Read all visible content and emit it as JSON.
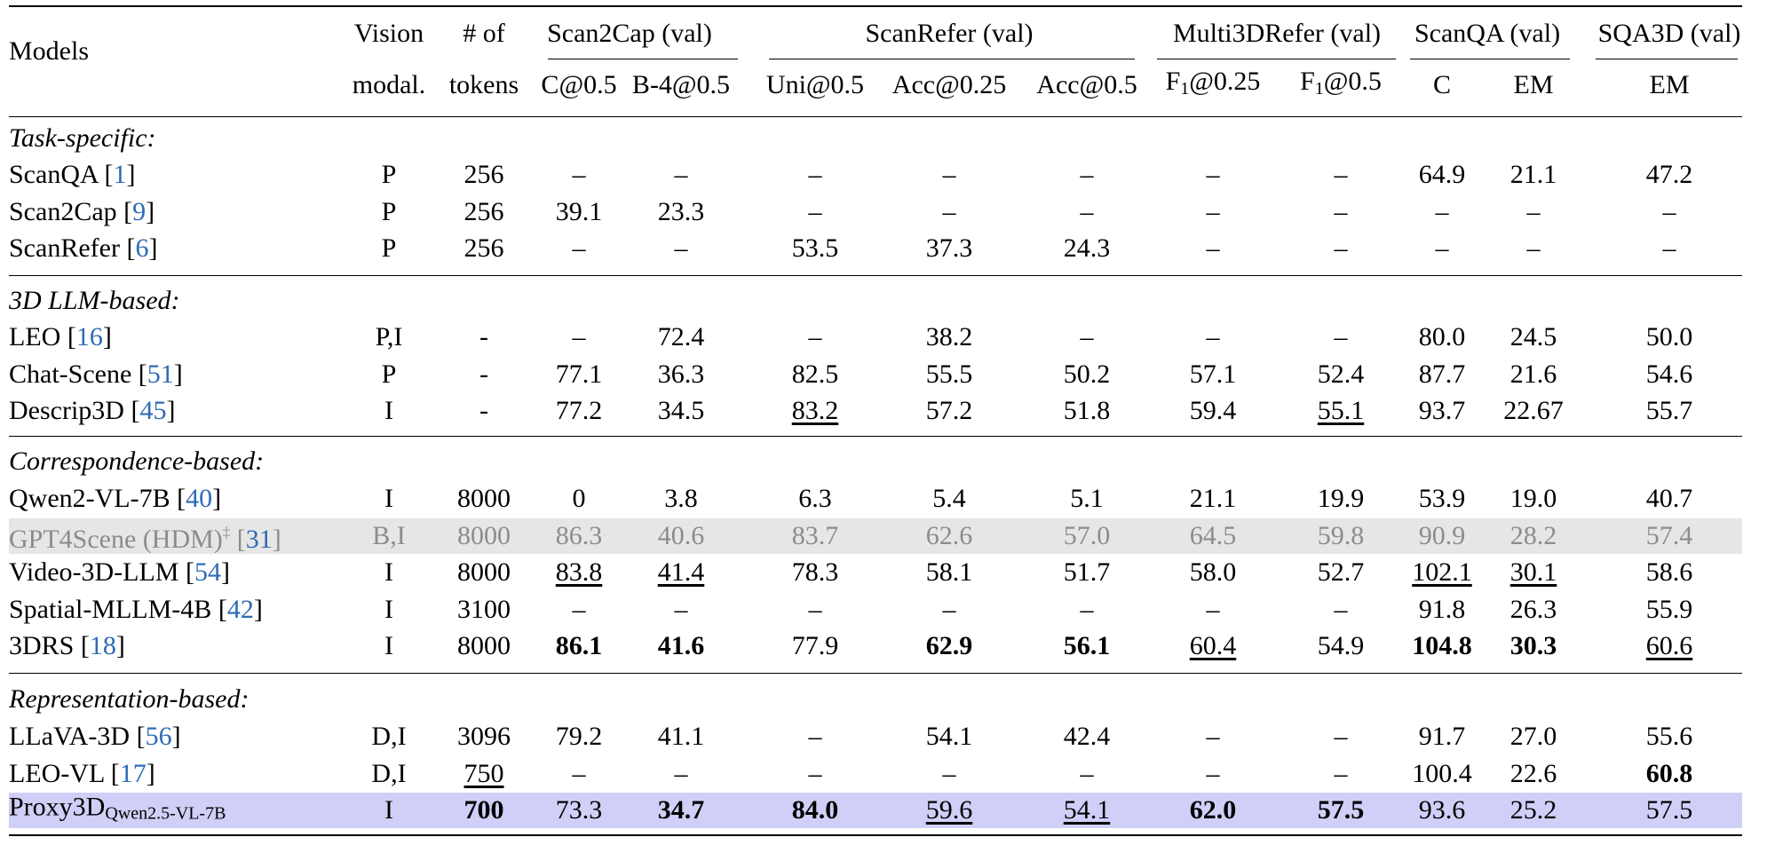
{
  "header": {
    "models": "Models",
    "vision_1": "Vision",
    "vision_2": "modal.",
    "tokens_1": "# of",
    "tokens_2": "tokens",
    "groups": [
      "Scan2Cap (val)",
      "ScanRefer (val)",
      "Multi3DRefer (val)",
      "ScanQA (val)",
      "SQA3D (val)"
    ],
    "metrics": [
      "C@0.5",
      "B-4@0.5",
      "Uni@0.5",
      "Acc@0.25",
      "Acc@0.5",
      "F",
      "F",
      "C",
      "EM",
      "EM"
    ],
    "metric_sub": "1",
    "metric_suffix_25": "@0.25",
    "metric_suffix_5": "@0.5"
  },
  "sections": [
    {
      "title": "Task-specific:",
      "rows": [
        {
          "name": "ScanQA",
          "ref": "1",
          "modal": "P",
          "tokens": "256",
          "vals": [
            "–",
            "–",
            "–",
            "–",
            "–",
            "–",
            "–",
            "64.9",
            "21.1",
            "47.2"
          ]
        },
        {
          "name": "Scan2Cap",
          "ref": "9",
          "modal": "P",
          "tokens": "256",
          "vals": [
            "39.1",
            "23.3",
            "–",
            "–",
            "–",
            "–",
            "–",
            "–",
            "–",
            "–"
          ]
        },
        {
          "name": "ScanRefer",
          "ref": "6",
          "modal": "P",
          "tokens": "256",
          "vals": [
            "–",
            "–",
            "53.5",
            "37.3",
            "24.3",
            "–",
            "–",
            "–",
            "–",
            "–"
          ]
        }
      ]
    },
    {
      "title": "3D LLM-based:",
      "rows": [
        {
          "name": "LEO",
          "ref": "16",
          "modal": "P,I",
          "tokens": "-",
          "vals": [
            "–",
            "72.4",
            "–",
            "38.2",
            "–",
            "–",
            "–",
            "80.0",
            "24.5",
            "50.0"
          ]
        },
        {
          "name": "Chat-Scene",
          "ref": "51",
          "modal": "P",
          "tokens": "-",
          "vals": [
            "77.1",
            "36.3",
            "82.5",
            "55.5",
            "50.2",
            "57.1",
            "52.4",
            "87.7",
            "21.6",
            "54.6"
          ]
        },
        {
          "name": "Descrip3D",
          "ref": "45",
          "modal": "I",
          "tokens": "-",
          "vals": [
            "77.2",
            "34.5",
            "83.2",
            "57.2",
            "51.8",
            "59.4",
            "55.1",
            "93.7",
            "22.67",
            "55.7"
          ]
        }
      ]
    },
    {
      "title": "Correspondence-based:",
      "rows": [
        {
          "name": "Qwen2-VL-7B",
          "ref": "40",
          "modal": "I",
          "tokens": "8000",
          "vals": [
            "0",
            "3.8",
            "6.3",
            "5.4",
            "5.1",
            "21.1",
            "19.9",
            "53.9",
            "19.0",
            "40.7"
          ]
        },
        {
          "name": "GPT4Scene (HDM)",
          "sup": "‡",
          "ref": "31",
          "modal": "B,I",
          "tokens": "8000",
          "vals": [
            "86.3",
            "40.6",
            "83.7",
            "62.6",
            "57.0",
            "64.5",
            "59.8",
            "90.9",
            "28.2",
            "57.4"
          ]
        },
        {
          "name": "Video-3D-LLM",
          "ref": "54",
          "modal": "I",
          "tokens": "8000",
          "vals": [
            "83.8",
            "41.4",
            "78.3",
            "58.1",
            "51.7",
            "58.0",
            "52.7",
            "102.1",
            "30.1",
            "58.6"
          ]
        },
        {
          "name": "Spatial-MLLM-4B",
          "ref": "42",
          "modal": "I",
          "tokens": "3100",
          "vals": [
            "–",
            "–",
            "–",
            "–",
            "–",
            "–",
            "–",
            "91.8",
            "26.3",
            "55.9"
          ]
        },
        {
          "name": "3DRS",
          "ref": "18",
          "modal": "I",
          "tokens": "8000",
          "vals": [
            "86.1",
            "41.6",
            "77.9",
            "62.9",
            "56.1",
            "60.4",
            "54.9",
            "104.8",
            "30.3",
            "60.6"
          ]
        }
      ]
    },
    {
      "title": "Representation-based:",
      "rows": [
        {
          "name": "LLaVA-3D",
          "ref": "56",
          "modal": "D,I",
          "tokens": "3096",
          "vals": [
            "79.2",
            "41.1",
            "–",
            "54.1",
            "42.4",
            "–",
            "–",
            "91.7",
            "27.0",
            "55.6"
          ]
        },
        {
          "name": "LEO-VL",
          "ref": "17",
          "modal": "D,I",
          "tokens": "750",
          "vals": [
            "–",
            "–",
            "–",
            "–",
            "–",
            "–",
            "–",
            "100.4",
            "22.6",
            "60.8"
          ]
        },
        {
          "name": "Proxy3D",
          "subscript": "Qwen2.5-VL-7B",
          "modal": "I",
          "tokens": "700",
          "vals": [
            "73.3",
            "34.7",
            "84.0",
            "59.6",
            "54.1",
            "62.0",
            "57.5",
            "93.6",
            "25.2",
            "57.5"
          ]
        }
      ]
    }
  ],
  "styles": {
    "gray_row_bg": "#e6e6e6",
    "highlight_row_bg": "#cfcff7",
    "gray_text": "#8c8c8c",
    "ref_color": "#2d6bb5"
  }
}
